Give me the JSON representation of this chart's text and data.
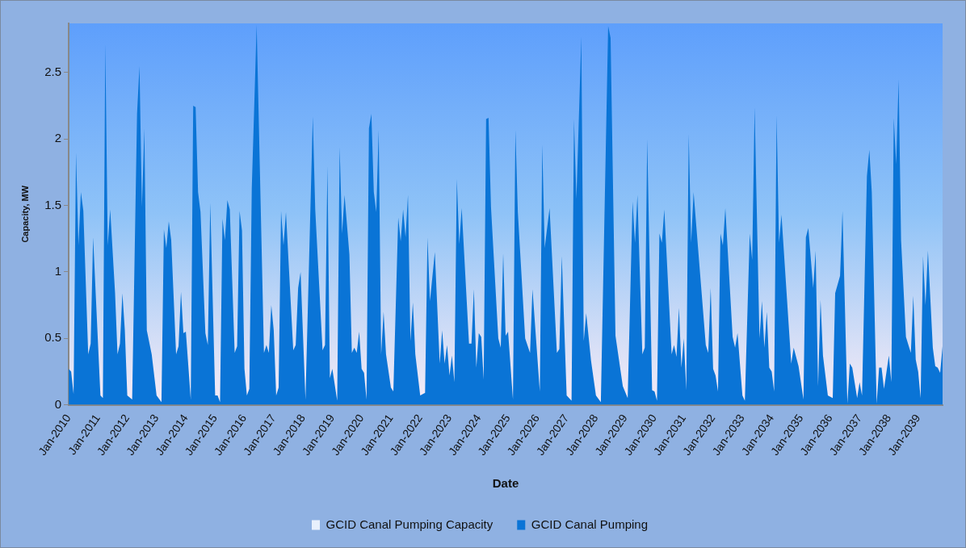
{
  "chart_data": {
    "type": "area",
    "xlabel": "Date",
    "ylabel": "Capacity, MW",
    "legend": "bottom",
    "xlim": [
      "2010-01",
      "2039-11"
    ],
    "ylim": [
      0,
      2.87
    ],
    "yticks": [
      0,
      0.5,
      1,
      1.5,
      2,
      2.5
    ],
    "xticks": [
      {
        "value": "2010-01",
        "label": "Jan-2010"
      },
      {
        "value": "2011-01",
        "label": "Jan-2011"
      },
      {
        "value": "2012-01",
        "label": "Jan-2012"
      },
      {
        "value": "2013-01",
        "label": "Jan-2013"
      },
      {
        "value": "2014-01",
        "label": "Jan-2014"
      },
      {
        "value": "2015-01",
        "label": "Jan-2015"
      },
      {
        "value": "2016-01",
        "label": "Jan-2016"
      },
      {
        "value": "2017-01",
        "label": "Jan-2017"
      },
      {
        "value": "2018-01",
        "label": "Jan-2018"
      },
      {
        "value": "2019-01",
        "label": "Jan-2019"
      },
      {
        "value": "2020-01",
        "label": "Jan-2020"
      },
      {
        "value": "2021-01",
        "label": "Jan-2021"
      },
      {
        "value": "2022-01",
        "label": "Jan-2022"
      },
      {
        "value": "2023-01",
        "label": "Jan-2023"
      },
      {
        "value": "2024-01",
        "label": "Jan-2024"
      },
      {
        "value": "2025-01",
        "label": "Jan-2025"
      },
      {
        "value": "2026-01",
        "label": "Jan-2026"
      },
      {
        "value": "2027-01",
        "label": "Jan-2027"
      },
      {
        "value": "2028-01",
        "label": "Jan-2028"
      },
      {
        "value": "2029-01",
        "label": "Jan-2029"
      },
      {
        "value": "2030-01",
        "label": "Jan-2030"
      },
      {
        "value": "2031-01",
        "label": "Jan-2031"
      },
      {
        "value": "2032-01",
        "label": "Jan-2032"
      },
      {
        "value": "2033-01",
        "label": "Jan-2033"
      },
      {
        "value": "2034-01",
        "label": "Jan-2034"
      },
      {
        "value": "2035-01",
        "label": "Jan-2035"
      },
      {
        "value": "2036-01",
        "label": "Jan-2036"
      },
      {
        "value": "2037-01",
        "label": "Jan-2037"
      },
      {
        "value": "2038-01",
        "label": "Jan-2038"
      },
      {
        "value": "2039-01",
        "label": "Jan-2039"
      }
    ],
    "x": [
      "2010-01",
      "2010-02",
      "2010-03",
      "2010-04",
      "2010-05",
      "2010-06",
      "2010-07",
      "2010-09",
      "2010-10",
      "2010-11",
      "2011-02",
      "2011-03",
      "2011-04",
      "2011-05",
      "2011-06",
      "2011-08",
      "2011-09",
      "2011-10",
      "2011-11",
      "2011-12",
      "2012-01",
      "2012-03",
      "2012-05",
      "2012-06",
      "2012-07",
      "2012-08",
      "2012-09",
      "2012-11",
      "2013-01",
      "2013-03",
      "2013-04",
      "2013-05",
      "2013-06",
      "2013-07",
      "2013-09",
      "2013-10",
      "2013-11",
      "2013-12",
      "2014-01",
      "2014-03",
      "2014-04",
      "2014-05",
      "2014-06",
      "2014-07",
      "2014-09",
      "2014-10",
      "2014-11",
      "2015-01",
      "2015-02",
      "2015-03",
      "2015-04",
      "2015-05",
      "2015-06",
      "2015-07",
      "2015-09",
      "2015-10",
      "2015-11",
      "2015-12",
      "2016-01",
      "2016-02",
      "2016-03",
      "2016-04",
      "2016-06",
      "2016-09",
      "2016-10",
      "2016-11",
      "2016-12",
      "2017-01",
      "2017-02",
      "2017-03",
      "2017-04",
      "2017-05",
      "2017-06",
      "2017-09",
      "2017-10",
      "2017-11",
      "2017-12",
      "2018-02",
      "2018-05",
      "2018-06",
      "2018-09",
      "2018-10",
      "2018-11",
      "2018-12",
      "2019-01",
      "2019-03",
      "2019-04",
      "2019-05",
      "2019-06",
      "2019-08",
      "2019-09",
      "2019-10",
      "2019-11",
      "2019-12",
      "2020-01",
      "2020-02",
      "2020-03",
      "2020-04",
      "2020-05",
      "2020-06",
      "2020-07",
      "2020-08",
      "2020-09",
      "2020-10",
      "2020-11",
      "2021-01",
      "2021-02",
      "2021-04",
      "2021-05",
      "2021-06",
      "2021-07",
      "2021-08",
      "2021-09",
      "2021-10",
      "2021-11",
      "2022-01",
      "2022-03",
      "2022-04",
      "2022-05",
      "2022-07",
      "2022-09",
      "2022-10",
      "2022-11",
      "2022-12",
      "2023-01",
      "2023-02",
      "2023-03",
      "2023-04",
      "2023-05",
      "2023-06",
      "2023-09",
      "2023-10",
      "2023-11",
      "2023-12",
      "2024-01",
      "2024-02",
      "2024-03",
      "2024-04",
      "2024-05",
      "2024-06",
      "2024-09",
      "2024-10",
      "2024-11",
      "2024-12",
      "2025-01",
      "2025-03",
      "2025-04",
      "2025-05",
      "2025-08",
      "2025-10",
      "2025-11",
      "2026-02",
      "2026-03",
      "2026-04",
      "2026-06",
      "2026-09",
      "2026-10",
      "2026-11",
      "2027-01",
      "2027-03",
      "2027-04",
      "2027-05",
      "2027-07",
      "2027-08",
      "2027-09",
      "2027-11",
      "2028-01",
      "2028-03",
      "2028-06",
      "2028-07",
      "2028-09",
      "2028-12",
      "2029-02",
      "2029-04",
      "2029-05",
      "2029-06",
      "2029-08",
      "2029-09",
      "2029-10",
      "2029-12",
      "2030-01",
      "2030-02",
      "2030-03",
      "2030-04",
      "2030-05",
      "2030-08",
      "2030-09",
      "2030-10",
      "2030-11",
      "2030-12",
      "2031-01",
      "2031-02",
      "2031-03",
      "2031-04",
      "2031-05",
      "2031-10",
      "2031-11",
      "2031-12",
      "2032-01",
      "2032-02",
      "2032-03",
      "2032-04",
      "2032-05",
      "2032-06",
      "2032-09",
      "2032-10",
      "2032-11",
      "2033-01",
      "2033-02",
      "2033-04",
      "2033-05",
      "2033-06",
      "2033-08",
      "2033-09",
      "2033-10",
      "2033-11",
      "2033-12",
      "2034-01",
      "2034-02",
      "2034-03",
      "2034-04",
      "2034-05",
      "2034-09",
      "2034-10",
      "2034-12",
      "2035-02",
      "2035-03",
      "2035-04",
      "2035-06",
      "2035-07",
      "2035-08",
      "2035-09",
      "2035-10",
      "2035-12",
      "2036-02",
      "2036-03",
      "2036-05",
      "2036-06",
      "2036-08",
      "2036-09",
      "2036-10",
      "2036-12",
      "2037-01",
      "2037-02",
      "2037-04",
      "2037-05",
      "2037-06",
      "2037-08",
      "2037-09",
      "2037-10",
      "2037-11",
      "2038-01",
      "2038-02",
      "2038-03",
      "2038-04",
      "2038-05",
      "2038-06",
      "2038-08",
      "2038-10",
      "2038-11",
      "2038-12",
      "2039-01",
      "2039-02",
      "2039-03",
      "2039-04",
      "2039-05",
      "2039-07",
      "2039-08",
      "2039-09",
      "2039-10",
      "2039-11"
    ],
    "series": [
      {
        "name": "GCID Canal Pumping Capacity",
        "color": "#e8f0fc",
        "values": [
          null,
          null,
          null,
          null,
          null,
          null,
          null,
          null,
          null,
          null,
          null,
          null,
          null,
          null,
          null,
          null,
          null,
          null,
          null,
          null,
          null,
          null,
          null,
          null,
          null,
          null,
          null,
          null,
          null,
          null,
          null,
          null,
          null,
          null,
          null,
          null,
          null,
          null,
          null,
          null,
          null,
          null,
          null,
          null,
          null,
          null,
          null,
          null,
          null,
          null,
          null,
          null,
          null,
          null,
          null,
          null,
          null,
          null,
          null,
          null,
          null,
          null,
          null,
          null,
          null,
          null,
          null,
          null,
          null,
          null,
          null,
          null,
          null,
          null,
          null,
          null,
          null,
          null,
          null,
          null,
          null,
          null,
          null,
          null,
          null,
          null,
          null,
          null,
          null,
          null,
          null,
          null,
          null,
          null,
          null,
          null,
          null,
          null,
          null,
          null,
          null,
          null,
          null,
          null,
          null,
          null,
          null,
          null,
          null,
          null,
          null,
          null,
          null,
          null,
          null,
          null,
          null,
          null,
          null,
          null,
          null,
          null,
          null,
          null,
          null,
          null,
          null,
          null,
          null,
          null,
          null,
          null,
          null,
          null,
          null,
          null,
          null,
          null,
          null,
          null,
          null,
          null,
          null,
          null,
          null,
          null,
          null,
          null,
          null,
          null,
          null,
          null,
          null,
          null,
          null,
          null,
          null,
          null,
          null,
          null,
          null,
          null,
          null,
          null,
          null,
          null,
          null,
          null,
          null,
          null,
          null,
          null,
          null,
          null,
          null,
          null,
          null,
          null,
          null,
          null,
          null,
          null,
          null,
          null,
          null,
          null,
          null,
          null,
          null,
          null,
          null,
          null,
          null,
          null,
          null,
          null,
          null,
          null,
          null,
          null,
          null,
          null,
          null,
          null,
          null,
          null,
          null,
          null,
          null,
          null,
          null,
          null,
          null,
          null,
          null,
          null,
          null,
          null,
          null,
          null,
          null,
          null,
          null,
          null,
          null,
          null,
          null,
          null,
          null,
          null,
          null,
          null,
          null,
          null,
          null,
          null,
          null,
          null,
          null,
          null,
          null,
          null,
          null,
          null,
          null,
          null,
          null,
          null,
          null,
          null,
          null,
          null,
          null,
          null,
          null,
          null,
          null,
          null,
          null,
          null,
          null,
          null,
          null,
          null,
          null,
          null,
          null,
          null,
          null,
          null,
          null
        ]
      },
      {
        "name": "GCID Canal Pumping",
        "color": "#0a74d6",
        "values": [
          0.27,
          0.25,
          0.08,
          1.9,
          1.2,
          1.6,
          1.46,
          0.38,
          0.46,
          1.26,
          0.07,
          0.05,
          2.72,
          1.2,
          1.47,
          0.84,
          0.38,
          0.46,
          0.84,
          0.56,
          0.07,
          0.04,
          2.19,
          2.55,
          1.49,
          2.08,
          0.56,
          0.38,
          0.07,
          0.02,
          1.32,
          1.18,
          1.38,
          1.24,
          0.38,
          0.44,
          0.85,
          0.54,
          0.55,
          0.04,
          2.25,
          2.24,
          1.6,
          1.45,
          0.54,
          0.45,
          1.52,
          0.07,
          0.07,
          0.02,
          1.4,
          1.24,
          1.54,
          1.47,
          0.39,
          0.44,
          1.46,
          1.31,
          0.27,
          0.07,
          0.12,
          1.63,
          2.86,
          0.39,
          0.45,
          0.39,
          0.75,
          0.56,
          0.07,
          0.13,
          1.46,
          1.2,
          1.45,
          0.41,
          0.45,
          0.88,
          1.0,
          0.04,
          2.17,
          1.47,
          0.41,
          0.45,
          1.8,
          0.2,
          0.27,
          0.03,
          1.94,
          1.29,
          1.58,
          1.13,
          0.39,
          0.43,
          0.39,
          0.55,
          0.27,
          0.24,
          0.04,
          2.08,
          2.19,
          1.6,
          1.45,
          2.07,
          0.38,
          0.7,
          0.38,
          0.13,
          0.1,
          1.41,
          1.23,
          1.47,
          1.26,
          1.58,
          0.48,
          0.77,
          0.38,
          0.07,
          0.09,
          1.26,
          0.78,
          1.15,
          0.31,
          0.56,
          0.31,
          0.45,
          0.22,
          0.37,
          0.17,
          1.7,
          1.21,
          1.48,
          0.46,
          0.46,
          0.87,
          0.28,
          0.54,
          0.51,
          0.19,
          2.15,
          2.16,
          1.49,
          0.5,
          0.43,
          1.14,
          0.52,
          0.55,
          0.04,
          2.07,
          1.45,
          0.5,
          0.39,
          0.87,
          0.1,
          1.96,
          1.18,
          1.48,
          0.39,
          0.42,
          1.12,
          0.07,
          0.03,
          2.15,
          1.55,
          2.77,
          0.48,
          0.69,
          0.33,
          0.07,
          0.02,
          2.85,
          2.76,
          0.52,
          0.14,
          0.05,
          1.53,
          1.22,
          1.58,
          0.38,
          0.43,
          2.0,
          0.11,
          0.1,
          0.03,
          1.29,
          1.22,
          1.47,
          0.38,
          0.45,
          0.36,
          0.73,
          0.28,
          0.5,
          0.11,
          2.04,
          1.22,
          1.6,
          0.45,
          0.39,
          0.88,
          0.27,
          0.22,
          0.1,
          1.29,
          1.2,
          1.48,
          0.51,
          0.43,
          0.54,
          0.07,
          0.03,
          1.29,
          1.09,
          2.24,
          0.5,
          0.78,
          0.43,
          0.7,
          0.28,
          0.25,
          0.1,
          2.18,
          1.22,
          1.43,
          0.31,
          0.43,
          0.29,
          0.04,
          1.26,
          1.33,
          0.88,
          1.16,
          0.14,
          0.79,
          0.37,
          0.07,
          0.05,
          0.84,
          0.97,
          1.46,
          0.01,
          0.31,
          0.28,
          0.05,
          0.17,
          0.07,
          1.72,
          1.92,
          1.6,
          0.01,
          0.28,
          0.28,
          0.12,
          0.37,
          0.17,
          2.16,
          1.81,
          2.45,
          1.24,
          0.51,
          0.39,
          0.82,
          0.34,
          0.25,
          0.05,
          1.12,
          0.75,
          1.16,
          0.43,
          0.29,
          0.28,
          0.24,
          0.44
        ]
      }
    ]
  }
}
